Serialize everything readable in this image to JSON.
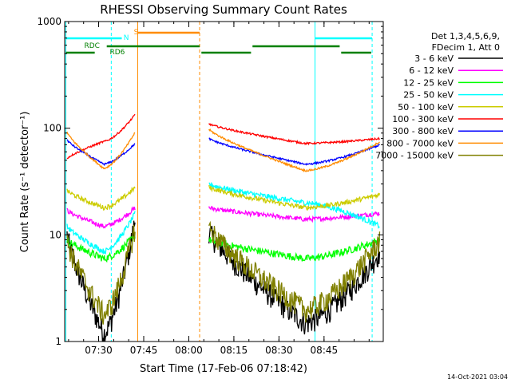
{
  "chart_data": {
    "type": "line",
    "title": "RHESSI Observing Summary Count Rates",
    "xlabel": "Start Time (17-Feb-06 07:18:42)",
    "ylabel": "Count Rate (s⁻¹ detector⁻¹)",
    "ylog": true,
    "ylim": [
      1,
      1000
    ],
    "xlim_min": [
      0,
      106
    ],
    "y_ticks": [
      {
        "v": 1,
        "t": "1"
      },
      {
        "v": 10,
        "t": "10"
      },
      {
        "v": 100,
        "t": "100"
      },
      {
        "v": 1000,
        "t": "1000"
      }
    ],
    "x_ticks": [
      {
        "v": 11.3,
        "t": "07:30"
      },
      {
        "v": 26.3,
        "t": "07:45"
      },
      {
        "v": 41.3,
        "t": "08:00"
      },
      {
        "v": 56.3,
        "t": "08:15"
      },
      {
        "v": 71.3,
        "t": "08:30"
      },
      {
        "v": 86.3,
        "t": "08:45"
      }
    ],
    "legend_header": [
      "Det 1,3,4,5,6,9,",
      "FDecim 1, Att 0"
    ],
    "series": [
      {
        "name": "3 - 6 keV",
        "color": "#000000",
        "noise": 0.25,
        "seg1": {
          "start": 10,
          "dip": 1.2,
          "end": 14
        },
        "seg2": {
          "start": 11,
          "dip": 1.5,
          "end": 7
        }
      },
      {
        "name": "6 - 12 keV",
        "color": "#ff00ff",
        "noise": 0.05,
        "seg1": {
          "start": 17,
          "dip": 12,
          "end": 18
        },
        "seg2": {
          "start": 18,
          "dip": 14,
          "end": 16
        }
      },
      {
        "name": "12 - 25 keV",
        "color": "#00ff00",
        "noise": 0.08,
        "seg1": {
          "start": 9,
          "dip": 6,
          "end": 10
        },
        "seg2": {
          "start": 9,
          "dip": 6,
          "end": 9
        }
      },
      {
        "name": "25 - 50 keV",
        "color": "#00ffff",
        "noise": 0.06,
        "seg1": {
          "start": 12,
          "dip": 7,
          "end": 16
        },
        "seg2": {
          "start": 30,
          "dip": 20,
          "end": 12
        }
      },
      {
        "name": "50 - 100 keV",
        "color": "#cccc00",
        "noise": 0.05,
        "seg1": {
          "start": 26,
          "dip": 18,
          "end": 28
        },
        "seg2": {
          "start": 28,
          "dip": 18,
          "end": 24
        }
      },
      {
        "name": "100 - 300 keV",
        "color": "#ff0000",
        "noise": 0.02,
        "seg1": {
          "start": 52,
          "dip": 75,
          "end": 135
        },
        "seg2": {
          "start": 110,
          "dip": 72,
          "end": 80
        }
      },
      {
        "name": "300 - 800 keV",
        "color": "#0000ff",
        "noise": 0.02,
        "seg1": {
          "start": 78,
          "dip": 46,
          "end": 72
        },
        "seg2": {
          "start": 80,
          "dip": 46,
          "end": 70
        }
      },
      {
        "name": "800 - 7000 keV",
        "color": "#ff8c00",
        "noise": 0.02,
        "seg1": {
          "start": 92,
          "dip": 42,
          "end": 92
        },
        "seg2": {
          "start": 98,
          "dip": 40,
          "end": 75
        }
      },
      {
        "name": "7000 - 15000 keV",
        "color": "#808000",
        "noise": 0.25,
        "seg1": {
          "start": 9,
          "dip": 1.8,
          "end": 12
        },
        "seg2": {
          "start": 12,
          "dip": 2,
          "end": 9
        }
      }
    ],
    "annotations": {
      "saa_label": "S",
      "night_label": "N",
      "rdc_label": "RDC",
      "rd6_label": "RD6"
    },
    "footer_date": "14-Oct-2021 03:04"
  }
}
